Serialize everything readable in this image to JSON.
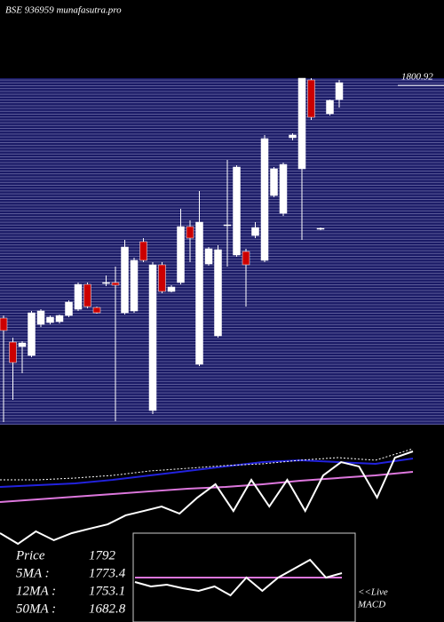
{
  "chart_data": [
    {
      "type": "candlestick",
      "title": "BSE 936959 munafasutra.pro",
      "ylim": [
        1610,
        1805
      ],
      "yticks": [
        {
          "value": 1800.92,
          "label": "1800.92"
        }
      ],
      "up_color": "#ffffff",
      "down_color": "#cc0000",
      "open": [
        1670,
        1656.5,
        1654,
        1649,
        1666.5,
        1667.5,
        1668,
        1671.5,
        1675,
        1689,
        1676,
        1689.5,
        1690,
        1673,
        1674,
        1713,
        1618,
        1700,
        1685,
        1690,
        1721.5,
        1644,
        1700.5,
        1660,
        1722,
        1705.5,
        1707.5,
        1716.5,
        1702.5,
        1739,
        1729,
        1771.5,
        1754,
        1804,
        1720,
        1785,
        1793
      ],
      "high": [
        1671.5,
        1659,
        1657,
        1674,
        1675,
        1671.5,
        1672,
        1680,
        1690,
        1690,
        1676.5,
        1694,
        1699,
        1714,
        1704,
        1715,
        1701.5,
        1701.5,
        1688.5,
        1731.5,
        1725,
        1741.5,
        1710,
        1711,
        1759,
        1756,
        1709,
        1724,
        1773,
        1755,
        1757.5,
        1774,
        1805,
        1805,
        1721,
        1793,
        1804
      ],
      "low": [
        1611.5,
        1624,
        1639,
        1648,
        1665,
        1666.5,
        1667,
        1670.5,
        1674,
        1675.5,
        1672.5,
        1688,
        1612,
        1672,
        1673,
        1701.5,
        1616,
        1684,
        1684.5,
        1689,
        1701.5,
        1643,
        1699.5,
        1659,
        1699,
        1704.5,
        1676.5,
        1715,
        1701.5,
        1738,
        1727.5,
        1770,
        1714,
        1781.5,
        1719.5,
        1784,
        1788.5
      ],
      "close": [
        1663,
        1645,
        1656,
        1673,
        1674,
        1670.5,
        1671.5,
        1679,
        1689,
        1676.5,
        1673,
        1690,
        1688.5,
        1710,
        1702.5,
        1702.5,
        1700,
        1685,
        1687.5,
        1721.5,
        1715,
        1724,
        1709,
        1708.5,
        1722.5,
        1755,
        1700,
        1721,
        1771,
        1754,
        1756.5,
        1773,
        1805,
        1783,
        1720.5,
        1792.5,
        1802.5
      ],
      "summary": [
        {
          "label": "Price",
          "value": 1792
        },
        {
          "label": "5MA :",
          "value": 1773.4
        },
        {
          "label": "12MA :",
          "value": 1753.1
        },
        {
          "label": "50MA :",
          "value": 1682.8
        }
      ]
    },
    {
      "type": "line",
      "ylim": [
        0,
        100
      ],
      "series": [
        {
          "color": "#2222dd",
          "values": [
            51.4,
            52.9,
            54.3,
            57.1,
            60.7,
            64.3,
            67.9,
            71.4,
            72.9,
            71.4,
            70,
            74.3
          ]
        },
        {
          "color": "#dd77dd",
          "values": [
            39.3,
            41.4,
            43.6,
            45.7,
            47.9,
            50,
            51.4,
            53.6,
            56.4,
            58.6,
            60.7,
            63.6
          ]
        },
        {
          "color": "#ffffff",
          "dash": true,
          "values": [
            57.1,
            57.1,
            58.6,
            60.7,
            64.3,
            66.4,
            68.6,
            70,
            72.9,
            75,
            72.9,
            82.1
          ]
        },
        {
          "color": "#ffffff",
          "values": [
            14.3,
            5.7,
            15.7,
            8.6,
            14.3,
            17.9,
            21.4,
            28.6,
            32.1,
            35.7,
            30,
            42.9,
            53.6,
            32.1,
            57.1,
            35.7,
            57.1,
            32.1,
            60.7,
            71.4,
            67.9,
            42.9,
            75,
            80
          ]
        }
      ]
    },
    {
      "type": "line",
      "title": "MACD",
      "note": "<<Live",
      "ylim": [
        0,
        100
      ],
      "series": [
        {
          "color": "#dd77dd",
          "values": [
            50,
            50
          ]
        },
        {
          "color": "#ffffff",
          "values": [
            45,
            40,
            42,
            38,
            35,
            40,
            30,
            50,
            35,
            50,
            60,
            70,
            50,
            55
          ]
        }
      ]
    }
  ]
}
